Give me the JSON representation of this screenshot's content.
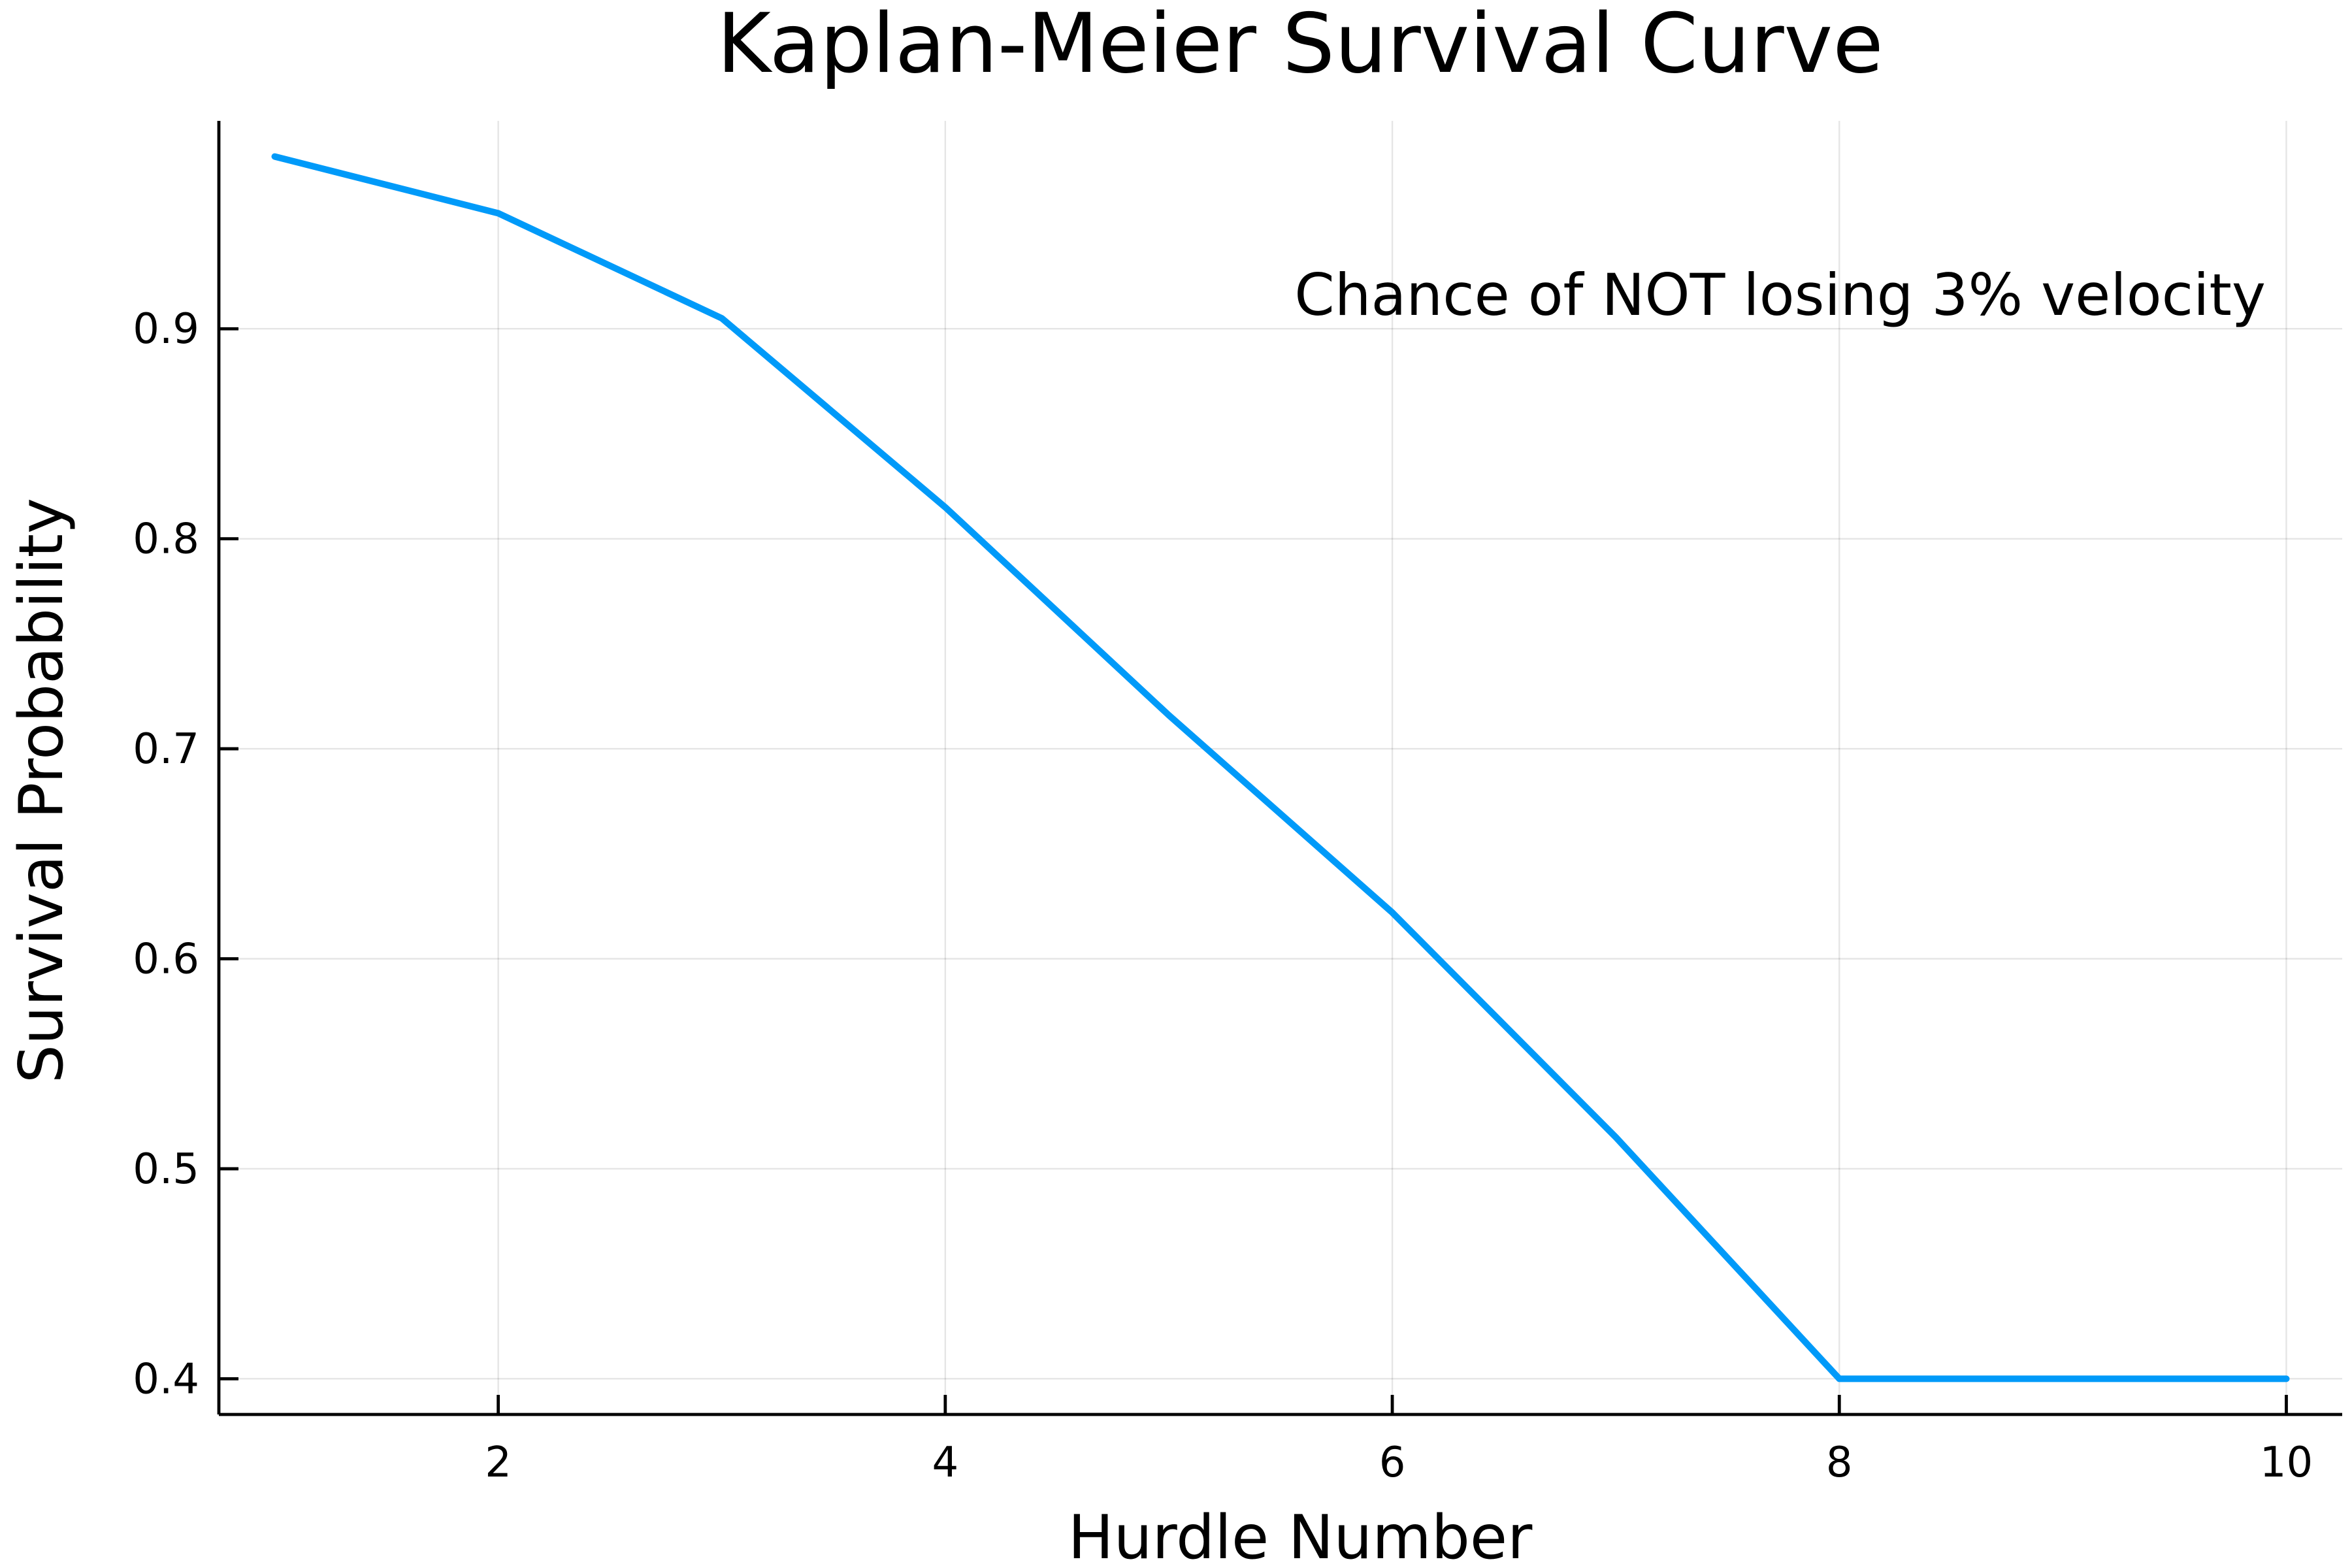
{
  "chart_data": {
    "type": "line",
    "title": "Kaplan-Meier Survival Curve",
    "xlabel": "Hurdle Number",
    "ylabel": "Survival Probability",
    "xlim": [
      0.75,
      10.25
    ],
    "ylim": [
      0.383,
      0.999
    ],
    "x_ticks": [
      2,
      4,
      6,
      8,
      10
    ],
    "x_tick_labels": [
      "2",
      "4",
      "6",
      "8",
      "10"
    ],
    "y_ticks": [
      0.4,
      0.5,
      0.6,
      0.7,
      0.8,
      0.9
    ],
    "y_tick_labels": [
      "0.4",
      "0.5",
      "0.6",
      "0.7",
      "0.8",
      "0.9"
    ],
    "grid": true,
    "legend": "none",
    "annotation": "Chance of NOT losing 3% velocity",
    "series": [
      {
        "color": "#009af9",
        "x": [
          1,
          2,
          3,
          4,
          5,
          6,
          7,
          8,
          9,
          10
        ],
        "y": [
          0.982,
          0.955,
          0.905,
          0.815,
          0.716,
          0.622,
          0.515,
          0.4,
          0.4,
          0.4
        ]
      }
    ]
  }
}
